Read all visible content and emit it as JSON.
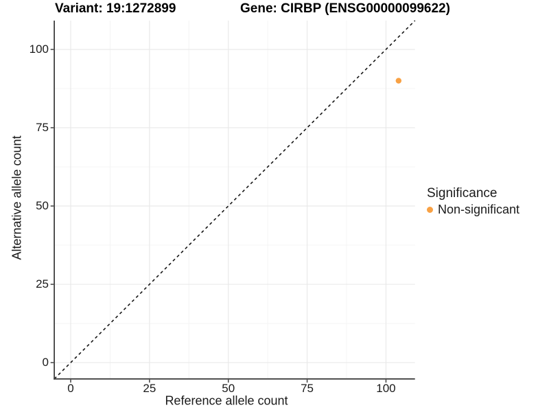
{
  "title": {
    "variant": "Variant: 19:1272899",
    "gene": "Gene: CIRBP (ENSG00000099622)"
  },
  "chart_data": {
    "type": "scatter",
    "title": "Variant: 19:1272899    Gene: CIRBP (ENSG00000099622)",
    "xlabel": "Reference allele count",
    "ylabel": "Alternative allele count",
    "xlim": [
      -5.2,
      109.2
    ],
    "ylim": [
      -5.2,
      109.2
    ],
    "x_ticks": [
      0,
      25,
      50,
      75,
      100
    ],
    "y_ticks": [
      0,
      25,
      50,
      75,
      100
    ],
    "x_minor_gridlines": [
      12.5,
      37.5,
      62.5,
      87.5
    ],
    "y_minor_gridlines": [
      12.5,
      37.5,
      62.5,
      87.5
    ],
    "grid": "major and minor, light gray on white",
    "series": [
      {
        "name": "Non-significant",
        "color": "#F8A144",
        "points": [
          {
            "x": 104,
            "y": 90
          }
        ]
      }
    ],
    "reference_line": {
      "type": "identity",
      "style": "dashed",
      "color": "#141414"
    },
    "legend": {
      "title": "Significance",
      "position": "right",
      "items": [
        {
          "label": "Non-significant",
          "color": "#F8A144"
        }
      ]
    }
  },
  "colors": {
    "background": "#FFFFFF",
    "grid_major": "#E9E9E9",
    "grid_minor": "#F4F4F4",
    "axis_line": "#3F3F3F",
    "text": "#1A1A1A",
    "point": "#F8A144"
  }
}
